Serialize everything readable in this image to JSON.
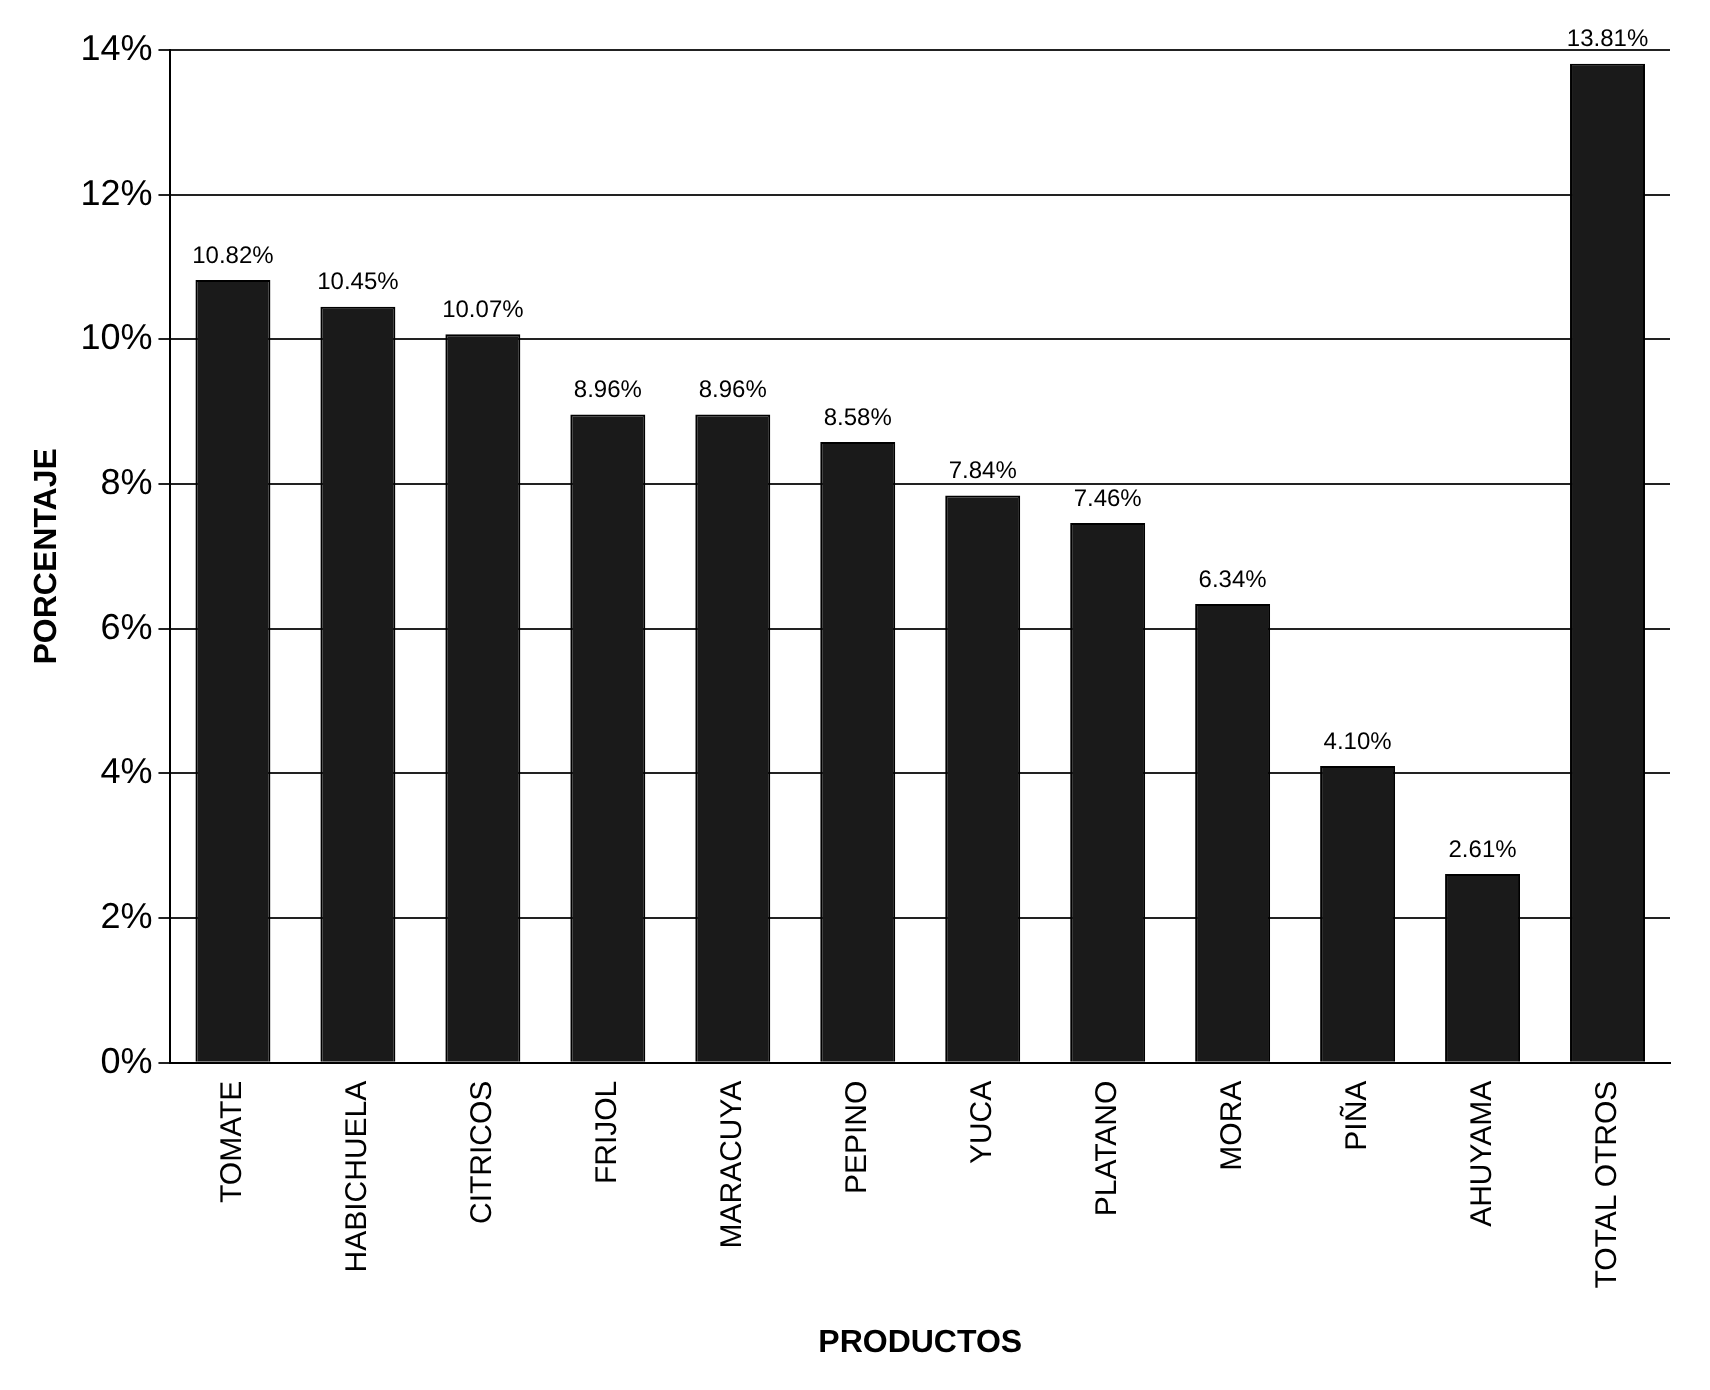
{
  "chart_data": {
    "type": "bar",
    "xlabel": "PRODUCTOS",
    "ylabel": "PORCENTAJE",
    "categories": [
      "TOMATE",
      "HABICHUELA",
      "CITRICOS",
      "FRIJOL",
      "MARACUYA",
      "PEPINO",
      "YUCA",
      "PLATANO",
      "MORA",
      "PIÑA",
      "AHUYAMA",
      "TOTAL OTROS"
    ],
    "values": [
      10.82,
      10.45,
      10.07,
      8.96,
      8.96,
      8.58,
      7.84,
      7.46,
      6.34,
      4.1,
      2.61,
      13.81
    ],
    "value_labels": [
      "10.82%",
      "10.45%",
      "10.07%",
      "8.96%",
      "8.96%",
      "8.58%",
      "7.84%",
      "7.46%",
      "6.34%",
      "4.10%",
      "2.61%",
      "13.81%"
    ],
    "color": "#1a1a1a",
    "ylim": [
      0,
      14
    ],
    "yticks": [
      {
        "value": 0,
        "label": "0%"
      },
      {
        "value": 2,
        "label": "2%"
      },
      {
        "value": 4,
        "label": "4%"
      },
      {
        "value": 6,
        "label": "6%"
      },
      {
        "value": 8,
        "label": "8%"
      },
      {
        "value": 10,
        "label": "10%"
      },
      {
        "value": 12,
        "label": "12%"
      },
      {
        "value": 14,
        "label": "14%"
      }
    ],
    "grid": "y",
    "legend": false
  }
}
